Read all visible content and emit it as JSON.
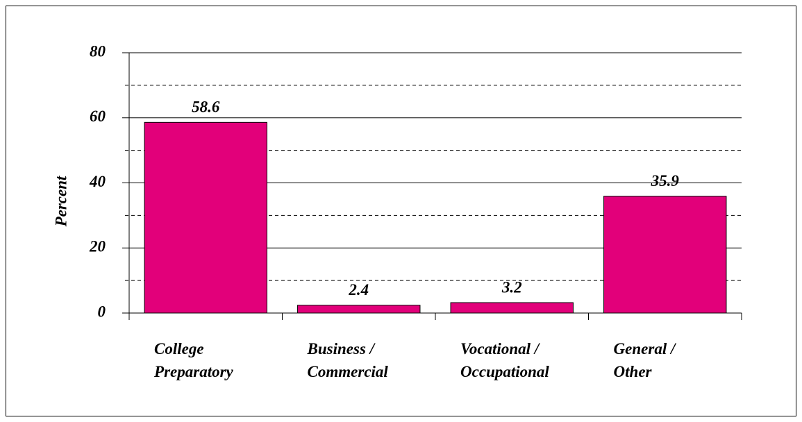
{
  "chart_data": {
    "type": "bar",
    "y_label": "Percent",
    "categories": [
      "College\nPreparatory",
      "Business /\nCommercial",
      "Vocational /\nOccupational",
      "General /\nOther"
    ],
    "values": [
      58.6,
      2.4,
      3.2,
      35.9
    ],
    "color": "#e2007a",
    "ylim": [
      0,
      80
    ],
    "yticks": [
      0,
      20,
      40,
      60,
      80
    ],
    "minor_yticks": [
      10,
      30,
      50,
      70
    ],
    "grid": true
  }
}
